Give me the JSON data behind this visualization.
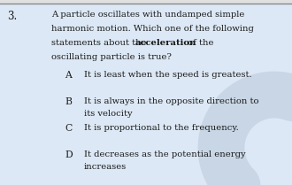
{
  "question_number": "3.",
  "q_line1": "A particle oscillates with undamped simple",
  "q_line2": "harmonic motion. Which one of the following",
  "q_line3_pre": "statements about the ",
  "q_line3_bold": "acceleration",
  "q_line3_post": " of the",
  "q_line4": "oscillating particle is true?",
  "options": [
    {
      "label": "A",
      "text1": "It is least when the speed is greatest.",
      "text2": ""
    },
    {
      "label": "B",
      "text1": "It is always in the opposite direction to",
      "text2": "its velocity"
    },
    {
      "label": "C",
      "text1": "It is proportional to the frequency.",
      "text2": ""
    },
    {
      "label": "D",
      "text1": "It decreases as the potential energy",
      "text2": "increases"
    }
  ],
  "bg_color_top": "#f0f0f0",
  "bg_color_main": "#dce8f5",
  "watermark_color": "#b8c8d8",
  "text_color": "#1a1a1a",
  "border_color": "#999999",
  "num_color": "#333333",
  "font_size": 7.2,
  "label_font_size": 7.8,
  "qnum_font_size": 8.5
}
